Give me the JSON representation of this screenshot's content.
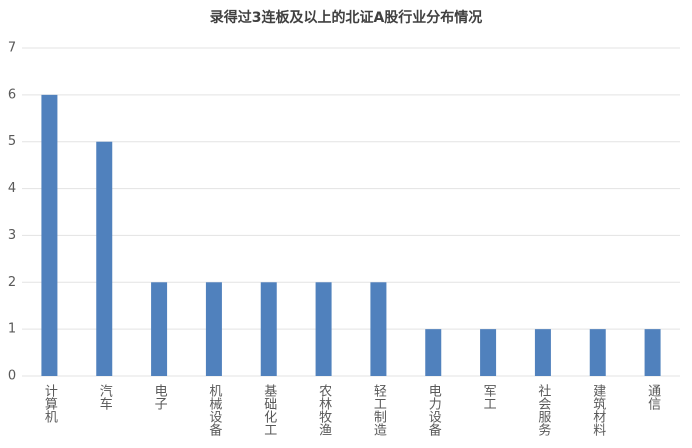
{
  "chart_data": {
    "type": "bar",
    "title": "录得过3连板及以上的北证A股行业分布情况",
    "categories": [
      "计算机",
      "汽车",
      "电子",
      "机械设备",
      "基础化工",
      "农林牧渔",
      "轻工制造",
      "电力设备",
      "军工",
      "社会服务",
      "建筑材料",
      "通信"
    ],
    "values": [
      6,
      5,
      2,
      2,
      2,
      2,
      2,
      1,
      1,
      1,
      1,
      1
    ],
    "color": "#5081bd",
    "ylim": [
      0,
      7
    ],
    "yticks": [
      0,
      1,
      2,
      3,
      4,
      5,
      6,
      7
    ],
    "grid": true
  }
}
